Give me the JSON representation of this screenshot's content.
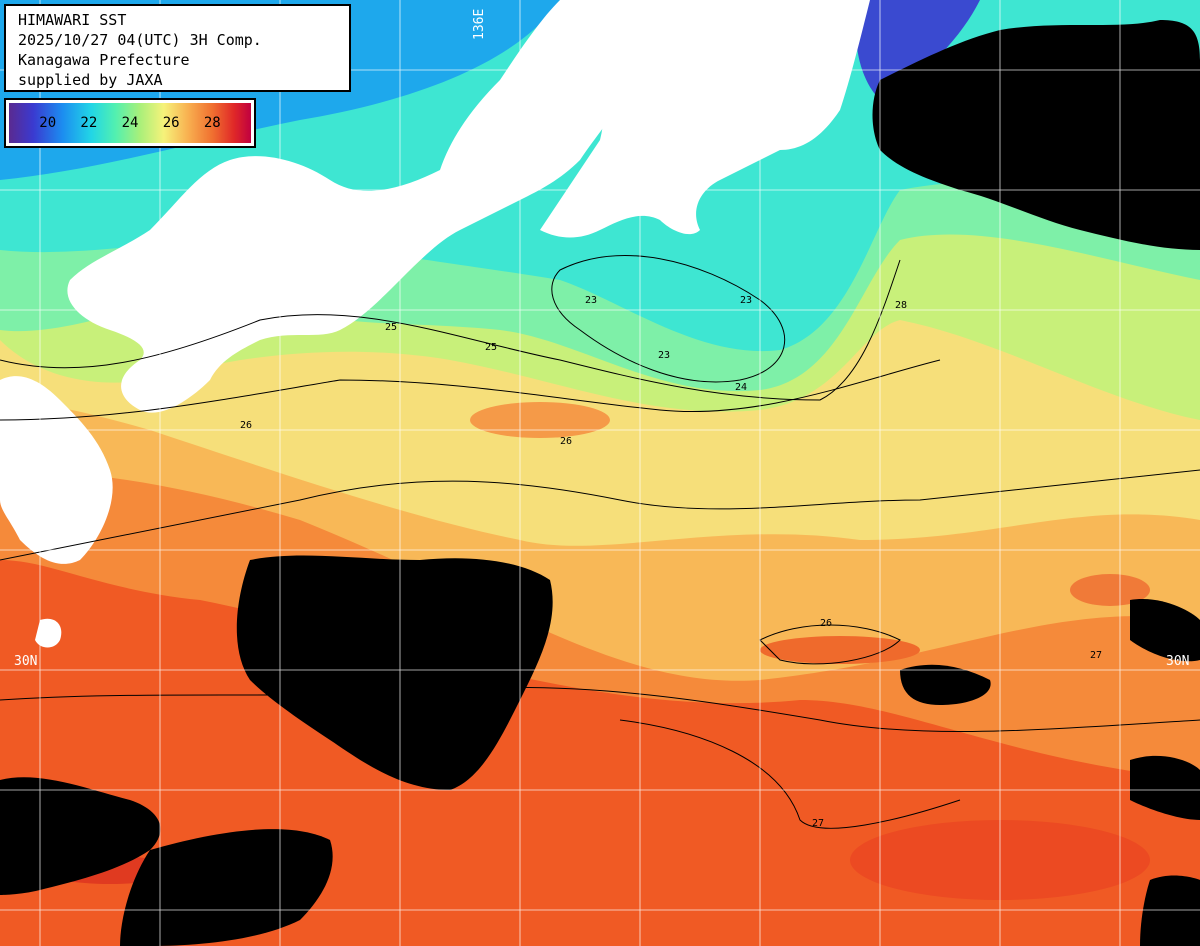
{
  "header": {
    "line1": "HIMAWARI SST",
    "line2": "2025/10/27 04(UTC) 3H Comp.",
    "line3": "Kanagawa Prefecture",
    "line4": "supplied by JAXA"
  },
  "legend": {
    "ticks": [
      "20",
      "22",
      "24",
      "26",
      "28"
    ]
  },
  "grid_labels": {
    "lat_left": "30N",
    "lat_right": "30N",
    "lon_top": "136E"
  },
  "contour_labels": [
    "23",
    "23",
    "23",
    "24",
    "25",
    "25",
    "26",
    "26",
    "26",
    "27",
    "27",
    "28"
  ],
  "colors": {
    "land": "#ffffff",
    "cloud": "#000000",
    "sst_22": "#22d6e6",
    "sst_24": "#a8f07a",
    "sst_26": "#f6d070",
    "sst_28": "#f05020",
    "grid": "#ffffff"
  }
}
